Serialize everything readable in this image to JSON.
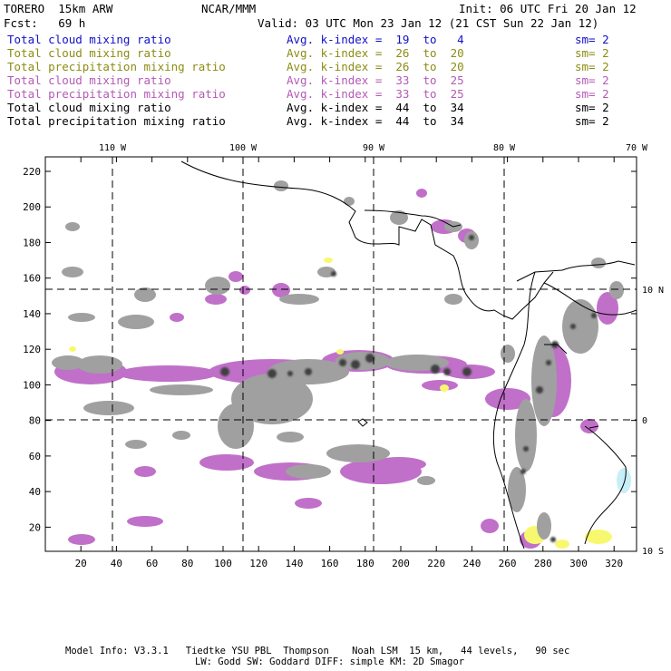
{
  "header": {
    "model": "TORERO  15km ARW",
    "center": "NCAR/MMM",
    "init": "Init: 06 UTC Fri 20 Jan 12",
    "fcst": "Fcst:   69 h",
    "valid": "Valid: 03 UTC Mon 23 Jan 12 (21 CST Sun 22 Jan 12)"
  },
  "legend": [
    {
      "label": "Total cloud mixing ratio",
      "idx": "Avg. k-index =  19  to   4",
      "sm": "sm= 2",
      "color": "#1010c8"
    },
    {
      "label": "Total cloud mixing ratio",
      "idx": "Avg. k-index =  26  to  20",
      "sm": "sm= 2",
      "color": "#8c8c14"
    },
    {
      "label": "Total precipitation mixing ratio",
      "idx": "Avg. k-index =  26  to  20",
      "sm": "sm= 2",
      "color": "#8c8c14"
    },
    {
      "label": "Total cloud mixing ratio",
      "idx": "Avg. k-index =  33  to  25",
      "sm": "sm= 2",
      "color": "#b45ab4"
    },
    {
      "label": "Total precipitation mixing ratio",
      "idx": "Avg. k-index =  33  to  25",
      "sm": "sm= 2",
      "color": "#b45ab4"
    },
    {
      "label": "Total cloud mixing ratio",
      "idx": "Avg. k-index =  44  to  34",
      "sm": "sm= 2",
      "color": "#000000"
    },
    {
      "label": "Total precipitation mixing ratio",
      "idx": "Avg. k-index =  44  to  34",
      "sm": "sm= 2",
      "color": "#000000"
    }
  ],
  "map": {
    "lon_labels": [
      "110 W",
      "100 W",
      "90 W",
      "80 W",
      "70 W"
    ],
    "lat_labels": [
      "10 N",
      "0",
      "10 S"
    ],
    "y_ticks": [
      "220",
      "200",
      "180",
      "160",
      "140",
      "120",
      "100",
      "80",
      "60",
      "40",
      "20"
    ],
    "x_ticks": [
      "20",
      "40",
      "60",
      "80",
      "100",
      "120",
      "140",
      "160",
      "180",
      "200",
      "220",
      "240",
      "260",
      "280",
      "300",
      "320"
    ],
    "colors": {
      "gray": "#a0a0a0",
      "purple": "#c070c8",
      "yellow": "#f8f870",
      "dark": "#404040",
      "cyan": "#c8eef8"
    }
  },
  "footer": {
    "line1": "Model Info: V3.3.1   Tiedtke YSU PBL  Thompson    Noah LSM  15 km,   44 levels,   90 sec",
    "line2": "LW: Godd SW: Goddard DIFF: simple KM: 2D Smagor"
  }
}
